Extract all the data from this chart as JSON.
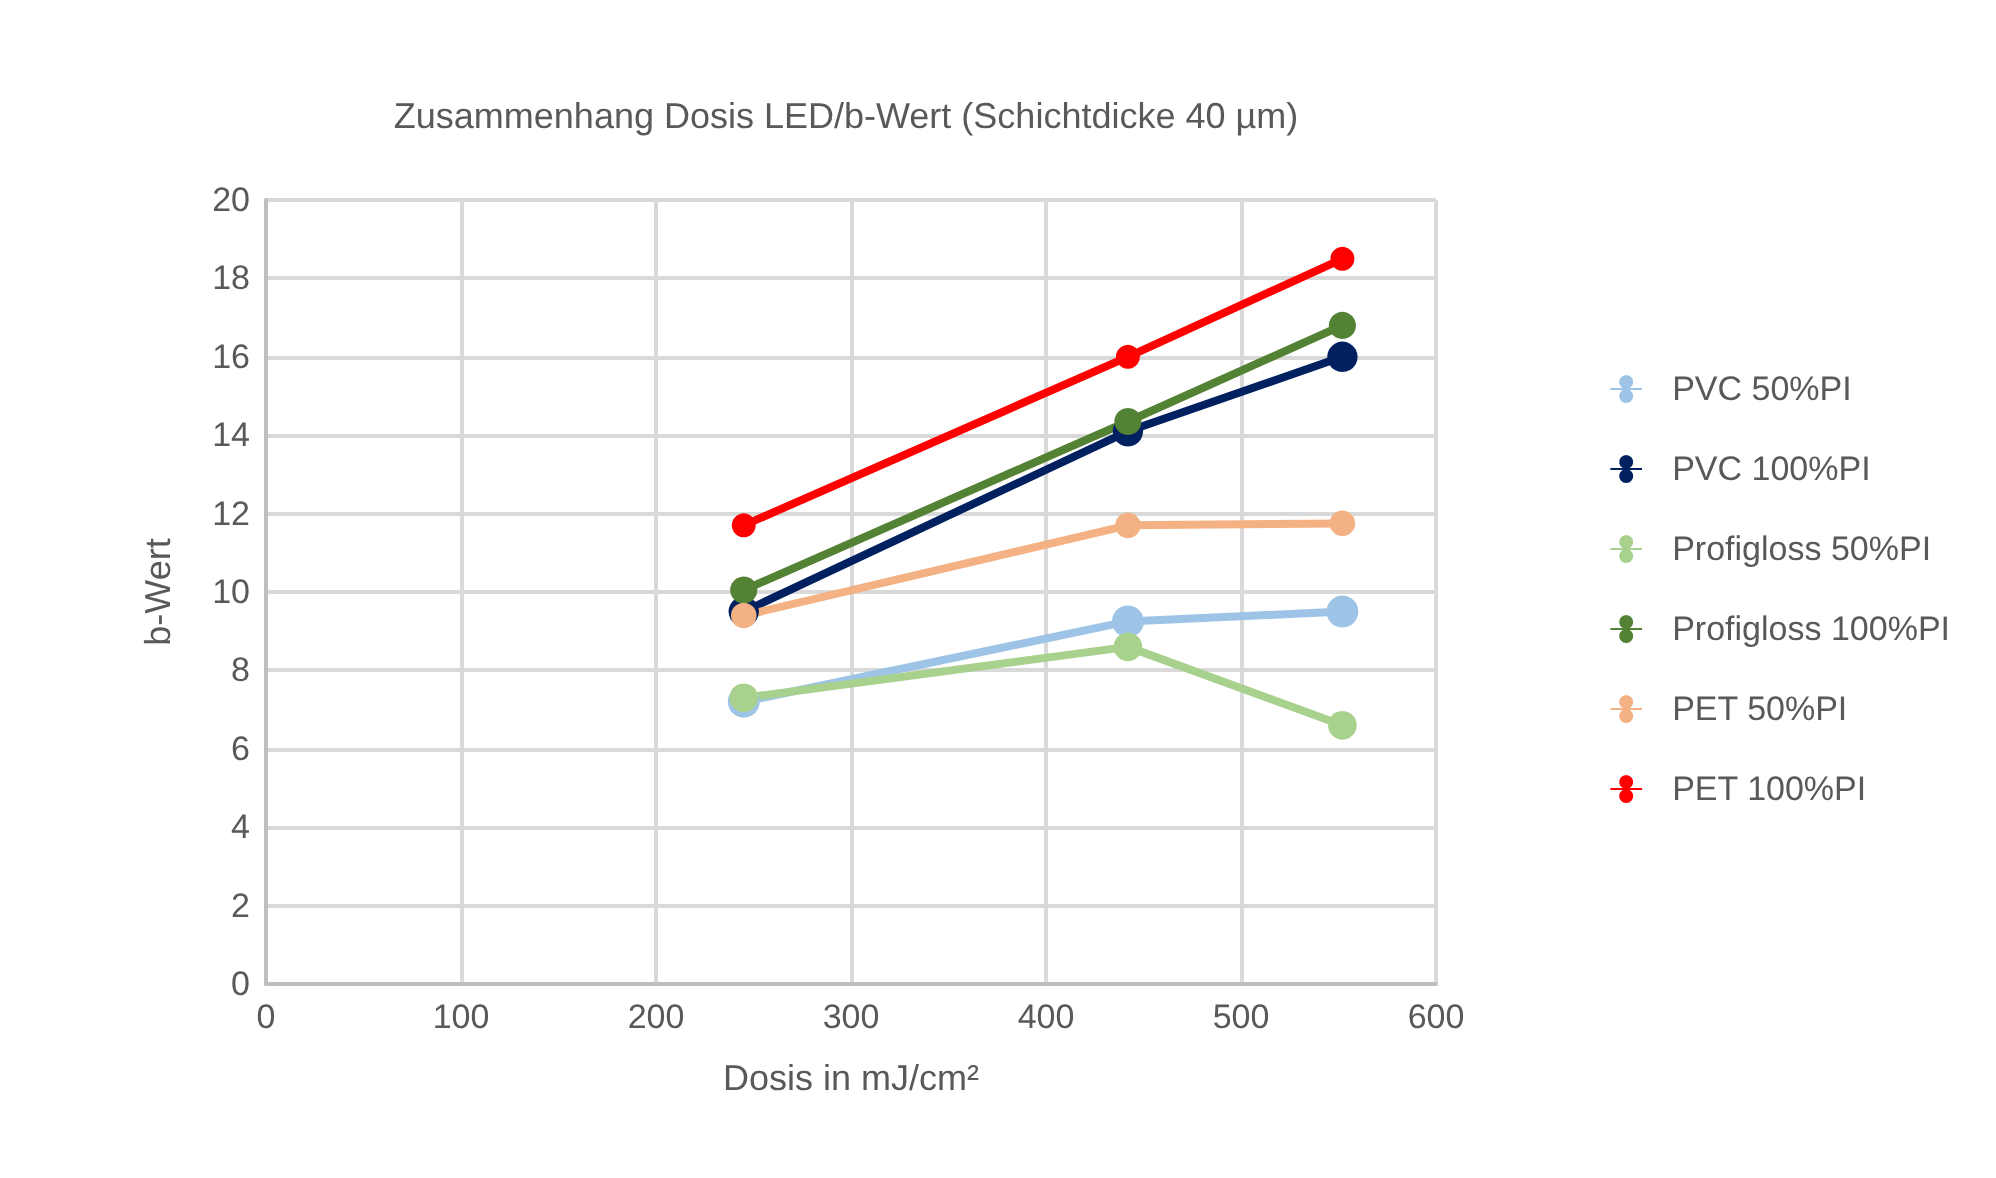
{
  "chart_data": {
    "type": "line",
    "title": "Zusammenhang Dosis LED/b-Wert (Schichtdicke 40 µm)",
    "xlabel": "Dosis in mJ/cm²",
    "ylabel": "b-Wert",
    "x": [
      245,
      442,
      552
    ],
    "series": [
      {
        "name": "PVC 50%PI",
        "color": "#9dc3e6",
        "values": [
          7.2,
          9.25,
          9.5
        ]
      },
      {
        "name": "PVC 100%PI",
        "color": "#002060",
        "values": [
          9.5,
          14.1,
          16.0
        ]
      },
      {
        "name": "Profigloss 50%PI",
        "color": "#a9d18e",
        "values": [
          7.3,
          8.6,
          6.6
        ]
      },
      {
        "name": "Profigloss 100%PI",
        "color": "#548235",
        "values": [
          10.05,
          14.35,
          16.8
        ]
      },
      {
        "name": "PET 50%PI",
        "color": "#f4b183",
        "values": [
          9.4,
          11.7,
          11.75
        ]
      },
      {
        "name": "PET 100%PI",
        "color": "#ff0000",
        "values": [
          11.7,
          16.0,
          18.5
        ]
      }
    ],
    "xlim": [
      0,
      600
    ],
    "xticks": [
      0,
      100,
      200,
      300,
      400,
      500,
      600
    ],
    "ylim": [
      0,
      20
    ],
    "yticks": [
      0,
      2,
      4,
      6,
      8,
      10,
      12,
      14,
      16,
      18,
      20
    ],
    "grid": true,
    "legend": "right",
    "marker": "circle",
    "line_style": "solid"
  }
}
